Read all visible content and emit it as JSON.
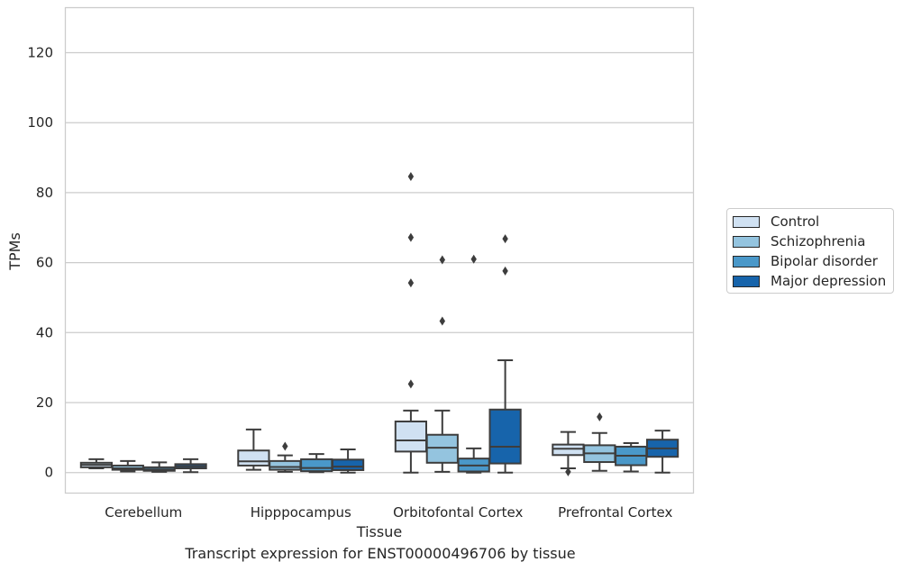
{
  "chart_data": {
    "type": "box",
    "title": "Transcript expression for ENST00000496706 by tissue",
    "xlabel": "Tissue",
    "ylabel": "TPMs",
    "ylim": [
      -6,
      133
    ],
    "yticks": [
      0,
      20,
      40,
      60,
      80,
      100,
      120
    ],
    "grid": "horizontal",
    "legend_position": "right",
    "categories": [
      "Cerebellum",
      "Hipppocampus",
      "Orbitofontal Cortex",
      "Prefrontal Cortex"
    ],
    "series": [
      {
        "name": "Control",
        "color": "#d0e1f2",
        "boxes": [
          {
            "whisker_low": 1.2,
            "q1": 1.5,
            "median": 2.2,
            "q3": 2.8,
            "whisker_high": 3.8,
            "outliers": []
          },
          {
            "whisker_low": 0.8,
            "q1": 2.0,
            "median": 3.2,
            "q3": 6.3,
            "whisker_high": 12.3,
            "outliers": []
          },
          {
            "whisker_low": 0.0,
            "q1": 6.0,
            "median": 9.2,
            "q3": 14.6,
            "whisker_high": 17.7,
            "outliers": [
              25.3,
              54.2,
              67.2,
              84.6
            ]
          },
          {
            "whisker_low": 1.2,
            "q1": 5.0,
            "median": 6.8,
            "q3": 8.0,
            "whisker_high": 11.6,
            "outliers": [
              0.2
            ]
          }
        ]
      },
      {
        "name": "Schizophrenia",
        "color": "#94c4df",
        "boxes": [
          {
            "whisker_low": 0.3,
            "q1": 0.8,
            "median": 1.2,
            "q3": 2.0,
            "whisker_high": 3.3,
            "outliers": []
          },
          {
            "whisker_low": 0.2,
            "q1": 0.8,
            "median": 1.6,
            "q3": 3.3,
            "whisker_high": 4.9,
            "outliers": [
              7.5
            ]
          },
          {
            "whisker_low": 0.2,
            "q1": 2.8,
            "median": 7.1,
            "q3": 10.8,
            "whisker_high": 17.7,
            "outliers": [
              43.3,
              60.8
            ]
          },
          {
            "whisker_low": 0.5,
            "q1": 3.0,
            "median": 5.5,
            "q3": 7.8,
            "whisker_high": 11.3,
            "outliers": [
              15.9
            ]
          }
        ]
      },
      {
        "name": "Bipolar disorder",
        "color": "#4a98c9",
        "boxes": [
          {
            "whisker_low": 0.2,
            "q1": 0.5,
            "median": 0.9,
            "q3": 1.5,
            "whisker_high": 2.9,
            "outliers": []
          },
          {
            "whisker_low": 0.1,
            "q1": 0.4,
            "median": 1.3,
            "q3": 3.8,
            "whisker_high": 5.3,
            "outliers": []
          },
          {
            "whisker_low": 0.0,
            "q1": 0.3,
            "median": 2.0,
            "q3": 4.0,
            "whisker_high": 6.9,
            "outliers": [
              61.0
            ]
          },
          {
            "whisker_low": 0.3,
            "q1": 2.1,
            "median": 4.8,
            "q3": 7.4,
            "whisker_high": 8.4,
            "outliers": []
          }
        ]
      },
      {
        "name": "Major depression",
        "color": "#1764ab",
        "boxes": [
          {
            "whisker_low": 0.1,
            "q1": 1.2,
            "median": 1.8,
            "q3": 2.4,
            "whisker_high": 3.8,
            "outliers": []
          },
          {
            "whisker_low": 0.0,
            "q1": 0.7,
            "median": 1.7,
            "q3": 3.7,
            "whisker_high": 6.6,
            "outliers": []
          },
          {
            "whisker_low": 0.0,
            "q1": 2.6,
            "median": 7.4,
            "q3": 18.0,
            "whisker_high": 32.1,
            "outliers": [
              57.6,
              66.8
            ]
          },
          {
            "whisker_low": 0.0,
            "q1": 4.5,
            "median": 6.9,
            "q3": 9.4,
            "whisker_high": 12.0,
            "outliers": []
          }
        ]
      }
    ]
  }
}
